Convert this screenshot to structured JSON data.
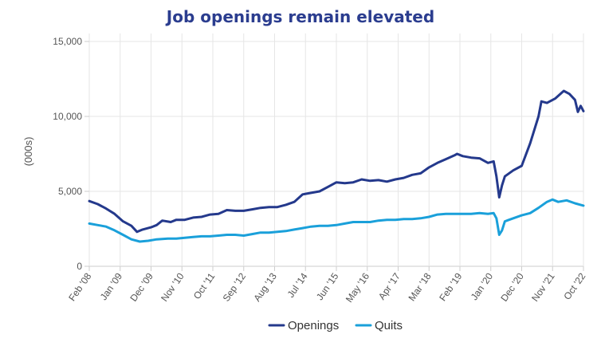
{
  "chart_data": {
    "type": "line",
    "title": "Job openings remain elevated",
    "ylabel": "(000s)",
    "xlabel": "",
    "ylim": [
      0,
      15000
    ],
    "yticks": [
      0,
      5000,
      10000,
      15000
    ],
    "ytick_labels": [
      "0",
      "5,000",
      "10,000",
      "15,000"
    ],
    "xtick_labels": [
      "Feb '08",
      "Jan '09",
      "Dec '09",
      "Nov '10",
      "Oct '11",
      "Sep '12",
      "Aug '13",
      "Jul '14",
      "Jun '15",
      "May '16",
      "Apr '17",
      "Mar '18",
      "Feb '19",
      "Jan '20",
      "Dec '20",
      "Nov '21",
      "Oct '22"
    ],
    "grid": true,
    "legend_position": "bottom",
    "colors": {
      "openings": "#24398c",
      "quits": "#1aa0da",
      "grid": "#e6e6e6",
      "axis": "#cccccc"
    },
    "series": [
      {
        "name": "Openings",
        "points": [
          [
            "2008-02",
            4350
          ],
          [
            "2008-05",
            4150
          ],
          [
            "2008-08",
            3850
          ],
          [
            "2008-11",
            3500
          ],
          [
            "2009-02",
            3000
          ],
          [
            "2009-05",
            2700
          ],
          [
            "2009-07",
            2300
          ],
          [
            "2009-09",
            2450
          ],
          [
            "2009-12",
            2600
          ],
          [
            "2010-02",
            2750
          ],
          [
            "2010-04",
            3050
          ],
          [
            "2010-07",
            2950
          ],
          [
            "2010-09",
            3100
          ],
          [
            "2010-12",
            3100
          ],
          [
            "2011-03",
            3250
          ],
          [
            "2011-06",
            3300
          ],
          [
            "2011-09",
            3450
          ],
          [
            "2011-12",
            3500
          ],
          [
            "2012-03",
            3750
          ],
          [
            "2012-06",
            3700
          ],
          [
            "2012-09",
            3700
          ],
          [
            "2012-12",
            3800
          ],
          [
            "2013-03",
            3900
          ],
          [
            "2013-06",
            3950
          ],
          [
            "2013-09",
            3950
          ],
          [
            "2013-12",
            4100
          ],
          [
            "2014-03",
            4300
          ],
          [
            "2014-06",
            4800
          ],
          [
            "2014-09",
            4900
          ],
          [
            "2014-12",
            5000
          ],
          [
            "2015-03",
            5300
          ],
          [
            "2015-06",
            5600
          ],
          [
            "2015-09",
            5550
          ],
          [
            "2015-12",
            5600
          ],
          [
            "2016-03",
            5800
          ],
          [
            "2016-06",
            5700
          ],
          [
            "2016-09",
            5750
          ],
          [
            "2016-12",
            5650
          ],
          [
            "2017-03",
            5800
          ],
          [
            "2017-06",
            5900
          ],
          [
            "2017-09",
            6100
          ],
          [
            "2017-12",
            6200
          ],
          [
            "2018-03",
            6600
          ],
          [
            "2018-06",
            6900
          ],
          [
            "2018-09",
            7150
          ],
          [
            "2018-12",
            7400
          ],
          [
            "2019-01",
            7500
          ],
          [
            "2019-03",
            7350
          ],
          [
            "2019-06",
            7250
          ],
          [
            "2019-09",
            7200
          ],
          [
            "2019-12",
            6900
          ],
          [
            "2020-02",
            7000
          ],
          [
            "2020-03",
            6000
          ],
          [
            "2020-04",
            4600
          ],
          [
            "2020-05",
            5400
          ],
          [
            "2020-06",
            6000
          ],
          [
            "2020-09",
            6400
          ],
          [
            "2020-12",
            6700
          ],
          [
            "2021-03",
            8200
          ],
          [
            "2021-06",
            10000
          ],
          [
            "2021-07",
            11000
          ],
          [
            "2021-09",
            10900
          ],
          [
            "2021-12",
            11200
          ],
          [
            "2022-03",
            11700
          ],
          [
            "2022-05",
            11500
          ],
          [
            "2022-07",
            11100
          ],
          [
            "2022-08",
            10300
          ],
          [
            "2022-09",
            10700
          ],
          [
            "2022-10",
            10350
          ]
        ]
      },
      {
        "name": "Quits",
        "points": [
          [
            "2008-02",
            2850
          ],
          [
            "2008-05",
            2750
          ],
          [
            "2008-08",
            2650
          ],
          [
            "2008-11",
            2400
          ],
          [
            "2009-02",
            2100
          ],
          [
            "2009-05",
            1800
          ],
          [
            "2009-08",
            1650
          ],
          [
            "2009-11",
            1700
          ],
          [
            "2010-02",
            1800
          ],
          [
            "2010-06",
            1850
          ],
          [
            "2010-09",
            1850
          ],
          [
            "2010-12",
            1900
          ],
          [
            "2011-03",
            1950
          ],
          [
            "2011-06",
            2000
          ],
          [
            "2011-09",
            2000
          ],
          [
            "2011-12",
            2050
          ],
          [
            "2012-03",
            2100
          ],
          [
            "2012-06",
            2100
          ],
          [
            "2012-09",
            2050
          ],
          [
            "2012-12",
            2150
          ],
          [
            "2013-03",
            2250
          ],
          [
            "2013-06",
            2250
          ],
          [
            "2013-09",
            2300
          ],
          [
            "2013-12",
            2350
          ],
          [
            "2014-03",
            2450
          ],
          [
            "2014-06",
            2550
          ],
          [
            "2014-09",
            2650
          ],
          [
            "2014-12",
            2700
          ],
          [
            "2015-03",
            2700
          ],
          [
            "2015-06",
            2750
          ],
          [
            "2015-09",
            2850
          ],
          [
            "2015-12",
            2950
          ],
          [
            "2016-03",
            2950
          ],
          [
            "2016-06",
            2950
          ],
          [
            "2016-09",
            3050
          ],
          [
            "2016-12",
            3100
          ],
          [
            "2017-03",
            3100
          ],
          [
            "2017-06",
            3150
          ],
          [
            "2017-09",
            3150
          ],
          [
            "2017-12",
            3200
          ],
          [
            "2018-03",
            3300
          ],
          [
            "2018-06",
            3450
          ],
          [
            "2018-09",
            3500
          ],
          [
            "2018-12",
            3500
          ],
          [
            "2019-03",
            3500
          ],
          [
            "2019-06",
            3500
          ],
          [
            "2019-09",
            3550
          ],
          [
            "2019-12",
            3500
          ],
          [
            "2020-02",
            3550
          ],
          [
            "2020-03",
            3200
          ],
          [
            "2020-04",
            2100
          ],
          [
            "2020-05",
            2400
          ],
          [
            "2020-06",
            3000
          ],
          [
            "2020-09",
            3200
          ],
          [
            "2020-12",
            3400
          ],
          [
            "2021-03",
            3550
          ],
          [
            "2021-06",
            3900
          ],
          [
            "2021-09",
            4300
          ],
          [
            "2021-11",
            4450
          ],
          [
            "2022-01",
            4300
          ],
          [
            "2022-04",
            4400
          ],
          [
            "2022-07",
            4200
          ],
          [
            "2022-10",
            4050
          ]
        ]
      }
    ]
  }
}
